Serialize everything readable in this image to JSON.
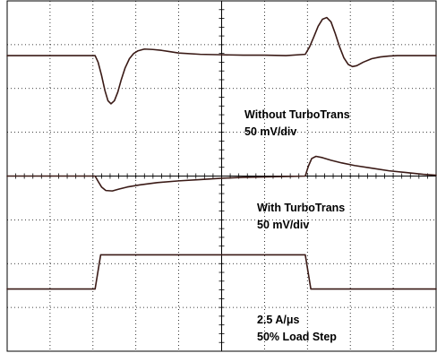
{
  "chart_data": {
    "type": "line",
    "title": "",
    "xlabel": "",
    "ylabel": "",
    "grid": true,
    "grid_divisions": {
      "x": 10,
      "y": 8
    },
    "xlim": [
      0,
      10
    ],
    "ylim": [
      0,
      8
    ],
    "colors": {
      "trace": "#3a1a16",
      "grid": "#000000",
      "background": "#ffffff"
    },
    "series": [
      {
        "annotation_lines": [
          "Without TurboTrans",
          "50 mV/div"
        ],
        "x": [
          0,
          2.05,
          2.12,
          2.2,
          2.28,
          2.35,
          2.42,
          2.5,
          2.58,
          2.66,
          2.75,
          2.85,
          2.95,
          3.05,
          3.2,
          3.4,
          3.6,
          3.8,
          4.0,
          4.5,
          5.0,
          5.5,
          6.0,
          6.5,
          6.95,
          7.05,
          7.15,
          7.25,
          7.35,
          7.45,
          7.55,
          7.65,
          7.75,
          7.85,
          7.95,
          8.05,
          8.15,
          8.3,
          8.5,
          8.7,
          8.9,
          9.1,
          9.4,
          10
        ],
        "y": [
          6.75,
          6.75,
          6.6,
          6.3,
          5.95,
          5.72,
          5.65,
          5.72,
          5.92,
          6.2,
          6.47,
          6.68,
          6.8,
          6.86,
          6.9,
          6.89,
          6.87,
          6.84,
          6.81,
          6.78,
          6.77,
          6.76,
          6.76,
          6.75,
          6.78,
          6.95,
          7.18,
          7.42,
          7.58,
          7.62,
          7.52,
          7.25,
          6.95,
          6.7,
          6.55,
          6.5,
          6.52,
          6.6,
          6.68,
          6.72,
          6.74,
          6.75,
          6.75,
          6.75
        ]
      },
      {
        "annotation_lines": [
          "With TurboTrans",
          "50 mV/div"
        ],
        "x": [
          0,
          2.05,
          2.12,
          2.2,
          2.3,
          2.45,
          2.6,
          2.8,
          3.1,
          3.5,
          4.0,
          4.5,
          5.0,
          5.5,
          6.0,
          6.5,
          6.95,
          7.02,
          7.1,
          7.2,
          7.35,
          7.55,
          7.8,
          8.1,
          8.5,
          8.9,
          9.3,
          9.7,
          10
        ],
        "y": [
          4.0,
          4.0,
          3.88,
          3.75,
          3.67,
          3.66,
          3.7,
          3.75,
          3.8,
          3.85,
          3.89,
          3.92,
          3.95,
          3.97,
          3.98,
          3.99,
          4.0,
          4.22,
          4.4,
          4.45,
          4.42,
          4.36,
          4.3,
          4.24,
          4.18,
          4.12,
          4.08,
          4.04,
          4.02
        ]
      },
      {
        "annotation_lines": [
          "2.5 A/μs",
          "50% Load Step"
        ],
        "x": [
          0,
          2.05,
          2.18,
          6.95,
          7.08,
          10
        ],
        "y": [
          1.42,
          1.42,
          2.2,
          2.2,
          1.42,
          1.42
        ]
      }
    ]
  }
}
